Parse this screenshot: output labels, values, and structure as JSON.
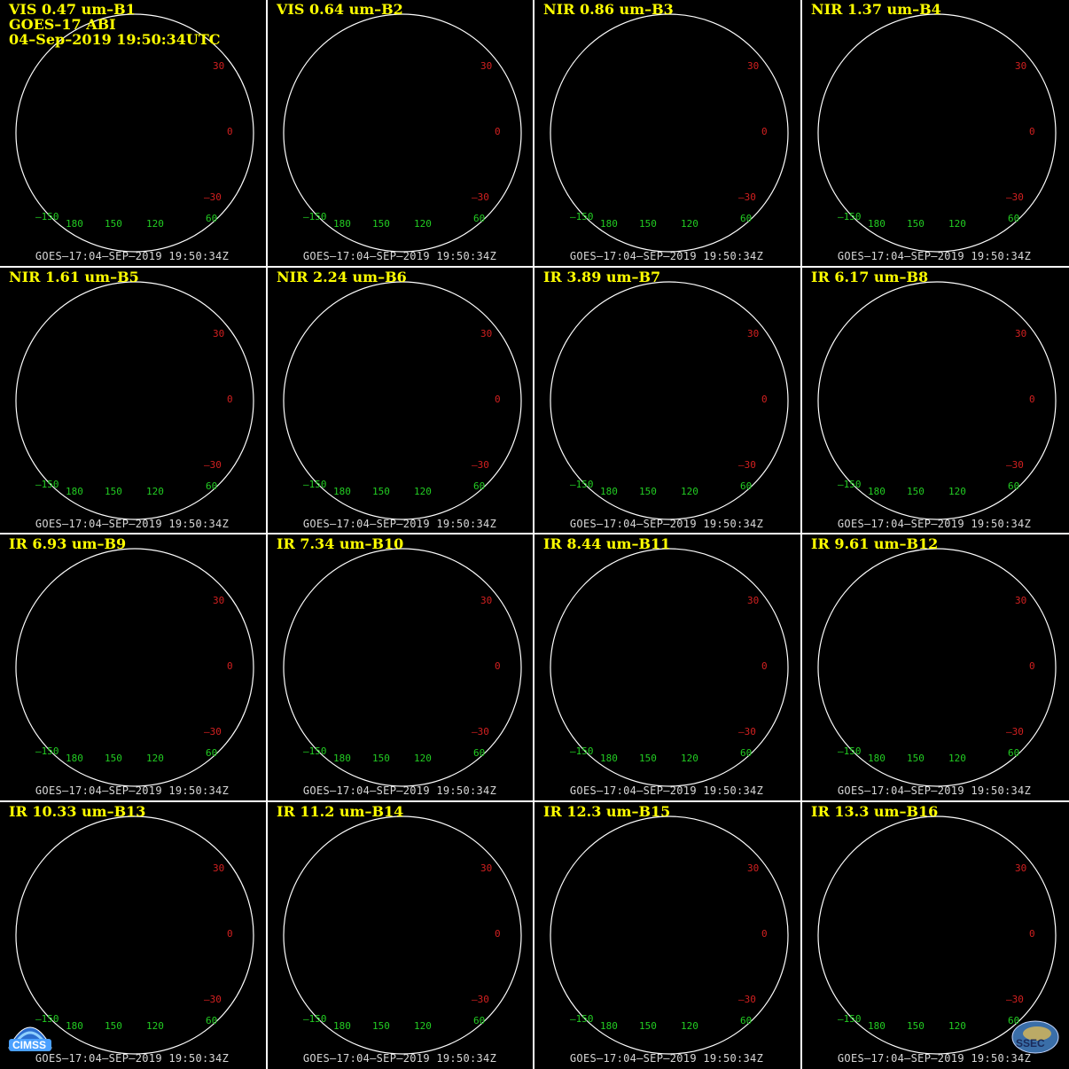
{
  "header": {
    "line1": "VIS 0.47 um–B1",
    "line2": "GOES–17 ABI",
    "line3": "04–Sep–2019 19:50:34UTC"
  },
  "footer_text": "GOES–17:04–SEP–2019 19:50:34Z",
  "lat_labels": [
    "30",
    "0",
    "–30"
  ],
  "lon_labels": [
    "–150",
    "180",
    "150",
    "120",
    "60"
  ],
  "panels": [
    {
      "title": "VIS 0.47 um–B1",
      "palette": "gray",
      "icon": "earth-disk-image"
    },
    {
      "title": "VIS 0.64 um–B2",
      "palette": "gray",
      "icon": "earth-disk-image"
    },
    {
      "title": "NIR 0.86 um–B3",
      "palette": "gray",
      "icon": "earth-disk-image"
    },
    {
      "title": "NIR 1.37 um–B4",
      "palette": "dark",
      "icon": "earth-disk-image"
    },
    {
      "title": "NIR 1.61 um–B5",
      "palette": "gray",
      "icon": "earth-disk-image"
    },
    {
      "title": "NIR 2.24 um–B6",
      "palette": "gray",
      "icon": "earth-disk-image"
    },
    {
      "title": "IR 3.89 um–B7",
      "palette": "red",
      "icon": "earth-disk-image"
    },
    {
      "title": "IR 6.17 um–B8",
      "palette": "white-blue",
      "icon": "earth-disk-image"
    },
    {
      "title": "IR 6.93 um–B9",
      "palette": "blue-yellow",
      "icon": "earth-disk-image"
    },
    {
      "title": "IR 7.34 um–B10",
      "palette": "blue-yellow",
      "icon": "earth-disk-image"
    },
    {
      "title": "IR 8.44 um–B11",
      "palette": "orange",
      "icon": "earth-disk-image"
    },
    {
      "title": "IR 9.61 um–B12",
      "palette": "yellow-blue",
      "icon": "earth-disk-image"
    },
    {
      "title": "IR 10.33 um–B13",
      "palette": "orange",
      "icon": "earth-disk-image"
    },
    {
      "title": "IR 11.2 um–B14",
      "palette": "orange",
      "icon": "earth-disk-image"
    },
    {
      "title": "IR 12.3 um–B15",
      "palette": "orange",
      "icon": "earth-disk-image"
    },
    {
      "title": "IR 13.3 um–B16",
      "palette": "yellow-blue",
      "icon": "earth-disk-image"
    }
  ],
  "logos": {
    "left": {
      "text": "CIMSS",
      "icon": "cimss-logo"
    },
    "right": {
      "text": "SSEC",
      "icon": "ssec-logo"
    }
  },
  "colors": {
    "title": "#ffff00",
    "lat_label": "#d22020",
    "lon_label": "#22cc22",
    "grid": "#ffffff",
    "footer": "#d8d8d8"
  }
}
